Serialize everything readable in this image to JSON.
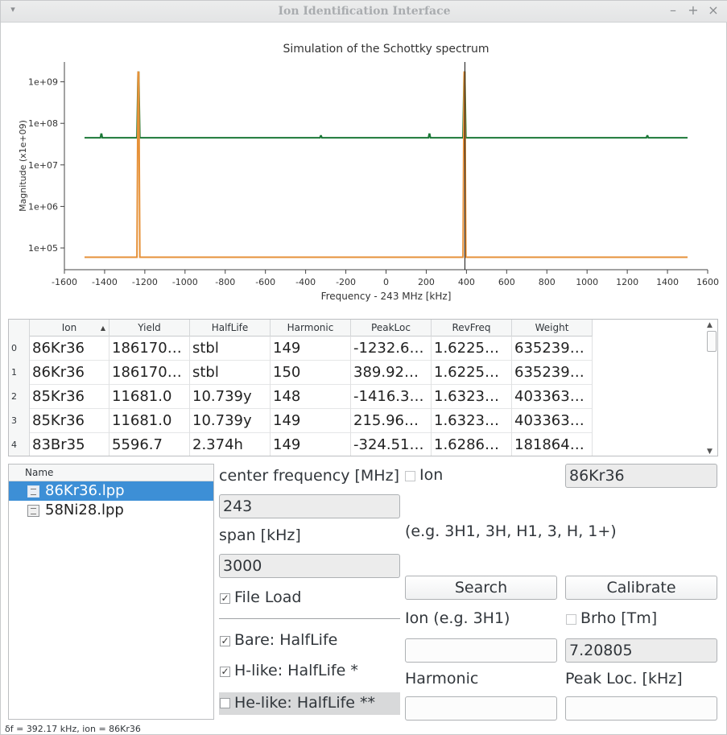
{
  "window": {
    "title": "Ion Identification Interface"
  },
  "chart_data": {
    "type": "line",
    "title": "Simulation of the Schottky spectrum",
    "xlabel": "Frequency - 243 MHz [kHz]",
    "ylabel": "Magnitude (x1e+09)",
    "xlim": [
      -1600,
      1600
    ],
    "ylim": [
      30000,
      3000000000
    ],
    "yscale": "log",
    "xticks": [
      "-1600",
      "-1400",
      "-1200",
      "-1000",
      "-800",
      "-600",
      "-400",
      "-200",
      "0",
      "200",
      "400",
      "600",
      "800",
      "1000",
      "1200",
      "1400",
      "1600"
    ],
    "yticks": [
      "1e+05",
      "1e+06",
      "1e+07",
      "1e+08",
      "1e+09"
    ],
    "grid": false,
    "series": [
      {
        "color": "#1b7837",
        "baseline": 45000000,
        "x_range": [
          -1500,
          1500
        ],
        "peaks": [
          {
            "x": -1416,
            "y": 55000000
          },
          {
            "x": -1232,
            "y": 1700000000
          },
          {
            "x": -324,
            "y": 50000000
          },
          {
            "x": 216,
            "y": 55000000
          },
          {
            "x": 390,
            "y": 1700000000
          },
          {
            "x": 1300,
            "y": 50000000
          }
        ]
      },
      {
        "color": "#e69138",
        "baseline": 60000,
        "x_range": [
          -1500,
          1500
        ],
        "peaks": [
          {
            "x": -1232,
            "y": 1700000000
          },
          {
            "x": 390,
            "y": 1700000000
          }
        ]
      }
    ],
    "marker_x": 392.17
  },
  "table": {
    "columns": [
      "Ion",
      "Yield",
      "HalfLife",
      "Harmonic",
      "PeakLoc",
      "RevFreq",
      "Weight"
    ],
    "sort_indicator": "▲",
    "rows": [
      {
        "idx": "0",
        "cells": [
          "86Kr36",
          "186170…",
          "stbl",
          "149",
          "-1232.6…",
          "1.6225…",
          "635239…"
        ]
      },
      {
        "idx": "1",
        "cells": [
          "86Kr36",
          "186170…",
          "stbl",
          "150",
          "389.92…",
          "1.6225…",
          "635239…"
        ]
      },
      {
        "idx": "2",
        "cells": [
          "85Kr36",
          "11681.0",
          "10.739y",
          "148",
          "-1416.3…",
          "1.6323…",
          "403363…"
        ]
      },
      {
        "idx": "3",
        "cells": [
          "85Kr36",
          "11681.0",
          "10.739y",
          "149",
          "215.96…",
          "1.6323…",
          "403363…"
        ]
      },
      {
        "idx": "4",
        "cells": [
          "83Br35",
          "5596.7",
          "2.374h",
          "149",
          "-324.51…",
          "1.6286…",
          "181864…"
        ]
      }
    ]
  },
  "files": {
    "header": "Name",
    "items": [
      {
        "label": "86Kr36.lpp",
        "selected": true
      },
      {
        "label": "58Ni28.lpp",
        "selected": false
      }
    ]
  },
  "controls": {
    "center_freq_label": "center frequency [MHz]",
    "center_freq_value": "243",
    "span_label": "span [kHz]",
    "span_value": "3000",
    "file_load_label": "File Load",
    "bare_label": "Bare: HalfLife",
    "hlike_label": "H-like: HalfLife *",
    "helike_label": "He-like: HalfLife **",
    "ion_check_label": "Ion",
    "ion_value": "86Kr36",
    "ion_hint": "(e.g. 3H1, 3H, H1, 3, H, 1+)",
    "search_label": "Search",
    "calibrate_label": "Calibrate",
    "ion_input_label": "Ion (e.g. 3H1)",
    "ion_input_value": "",
    "brho_label": "Brho [Tm]",
    "brho_value": "7.20805",
    "harmonic_label": "Harmonic",
    "harmonic_value": "",
    "peakloc_label": "Peak Loc. [kHz]",
    "peakloc_value": "",
    "check_mark": "✓"
  },
  "status": "δf = 392.17 kHz, ion = 86Kr36"
}
